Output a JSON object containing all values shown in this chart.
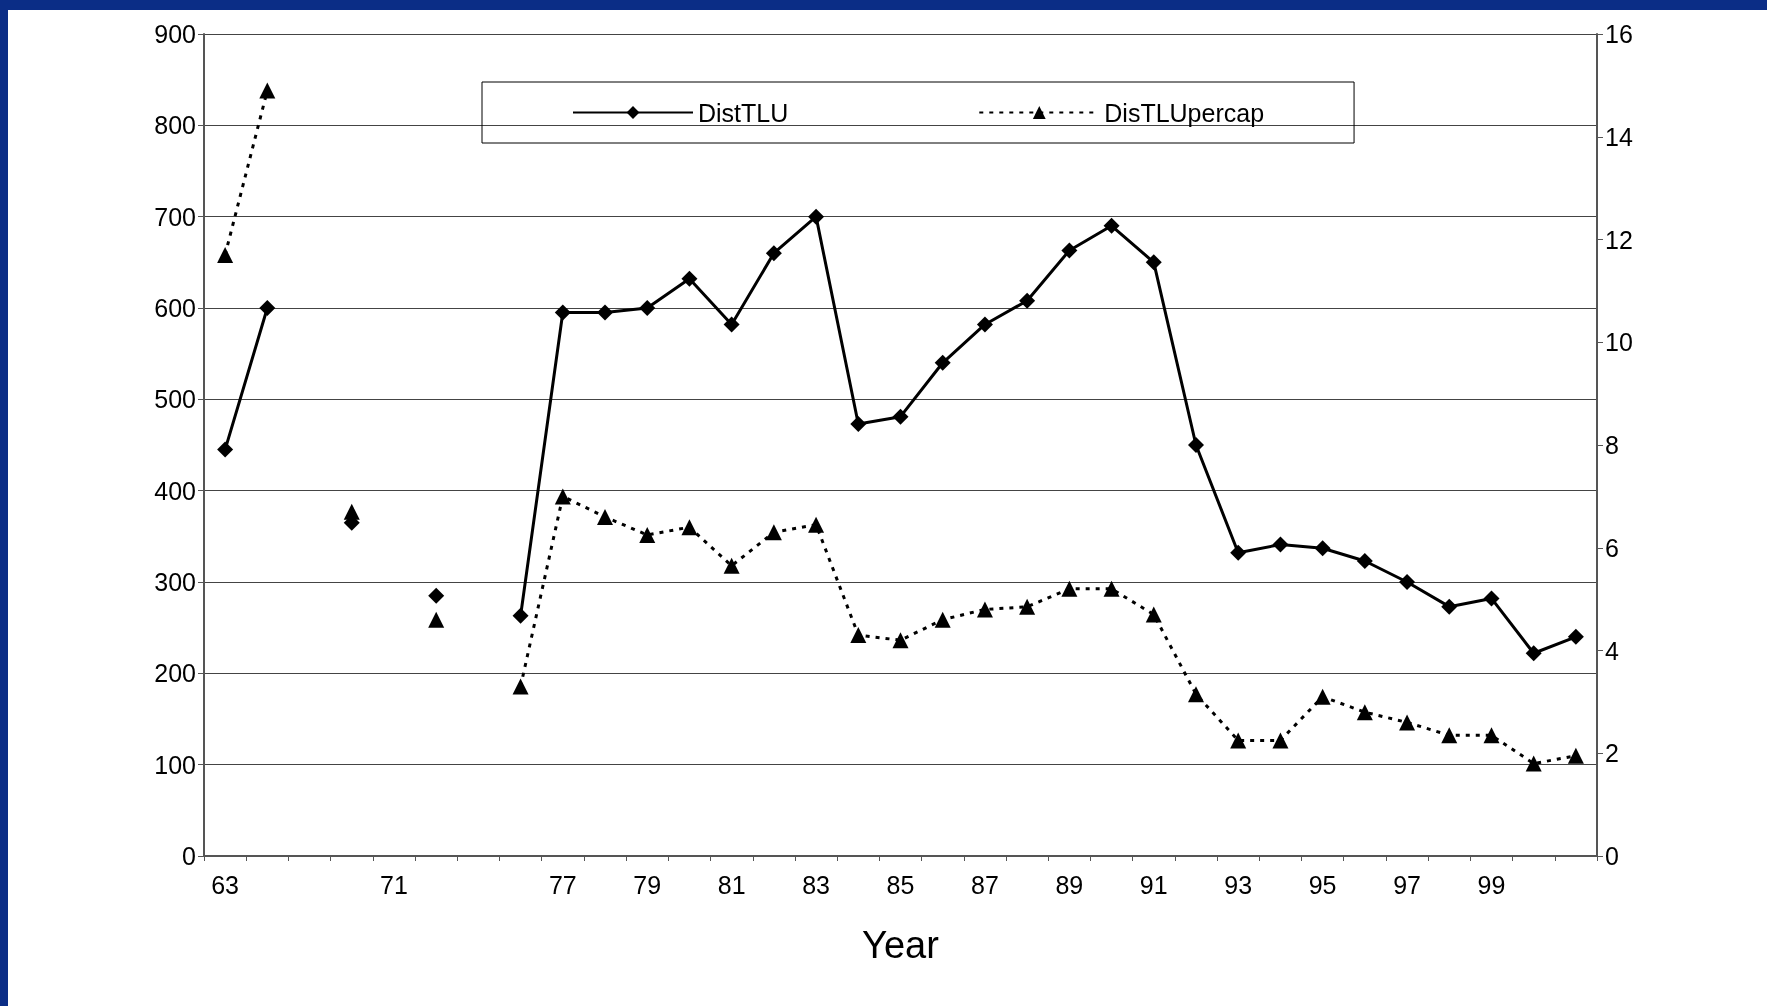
{
  "chart_data": {
    "type": "line",
    "xlabel": "Year",
    "categories": [
      "63",
      null,
      null,
      null,
      "71",
      null,
      null,
      null,
      "77",
      null,
      "79",
      null,
      "81",
      null,
      "83",
      null,
      "85",
      null,
      "87",
      null,
      "89",
      null,
      "91",
      null,
      "93",
      null,
      "95",
      null,
      "97",
      null,
      "99",
      null,
      null
    ],
    "series": [
      {
        "name": "DistTLU",
        "color": "#000000",
        "marker": "diamond",
        "line_style": "solid",
        "values": [
          445,
          600,
          null,
          365,
          null,
          285,
          null,
          263,
          595,
          595,
          600,
          632,
          582,
          660,
          700,
          473,
          481,
          540,
          582,
          608,
          663,
          690,
          650,
          450,
          332,
          341,
          337,
          323,
          300,
          273,
          282,
          222,
          240
        ]
      },
      {
        "name": "DisTLUpercap",
        "color": "#000000",
        "marker": "triangle",
        "line_style": "dashed",
        "axis": "y2",
        "values": [
          11.7,
          14.9,
          null,
          6.7,
          null,
          4.6,
          null,
          3.3,
          7.0,
          6.6,
          6.25,
          6.4,
          5.65,
          6.3,
          6.45,
          4.3,
          4.2,
          4.6,
          4.8,
          4.85,
          5.2,
          5.2,
          4.7,
          3.15,
          2.25,
          2.25,
          3.1,
          2.8,
          2.6,
          2.35,
          2.35,
          1.8,
          1.95
        ]
      }
    ],
    "ylim": [
      0,
      900
    ],
    "yticks": [
      0,
      100,
      200,
      300,
      400,
      500,
      600,
      700,
      800,
      900
    ],
    "y2lim": [
      0,
      16
    ],
    "y2ticks": [
      0,
      2,
      4,
      6,
      8,
      10,
      12,
      14,
      16
    ],
    "grid": "y",
    "legend": "top"
  }
}
